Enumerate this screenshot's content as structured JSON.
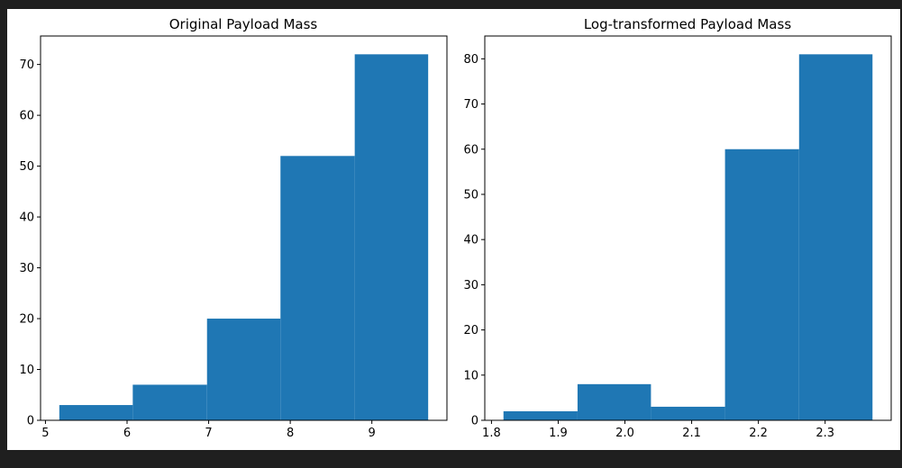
{
  "chart_data": [
    {
      "type": "bar",
      "title": "Original Payload Mass",
      "xlabel": "",
      "ylabel": "",
      "bins": [
        {
          "x0": 5.17,
          "x1": 6.07,
          "count": 3
        },
        {
          "x0": 6.07,
          "x1": 6.98,
          "count": 7
        },
        {
          "x0": 6.98,
          "x1": 7.88,
          "count": 20
        },
        {
          "x0": 7.88,
          "x1": 8.79,
          "count": 52
        },
        {
          "x0": 8.79,
          "x1": 9.69,
          "count": 72
        }
      ],
      "xlim": [
        4.94,
        9.92
      ],
      "ylim": [
        0,
        75.6
      ],
      "xticks": [
        5,
        6,
        7,
        8,
        9
      ],
      "yticks": [
        0,
        10,
        20,
        30,
        40,
        50,
        60,
        70
      ],
      "xtick_labels": [
        "5",
        "6",
        "7",
        "8",
        "9"
      ],
      "ytick_labels": [
        "0",
        "10",
        "20",
        "30",
        "40",
        "50",
        "60",
        "70"
      ],
      "color": "#1f77b4"
    },
    {
      "type": "bar",
      "title": "Log-transformed Payload Mass",
      "xlabel": "",
      "ylabel": "",
      "bins": [
        {
          "x0": 1.818,
          "x1": 1.929,
          "count": 2
        },
        {
          "x0": 1.929,
          "x1": 2.039,
          "count": 8
        },
        {
          "x0": 2.039,
          "x1": 2.15,
          "count": 3
        },
        {
          "x0": 2.15,
          "x1": 2.261,
          "count": 60
        },
        {
          "x0": 2.261,
          "x1": 2.371,
          "count": 81
        }
      ],
      "xlim": [
        1.79,
        2.399
      ],
      "ylim": [
        0,
        85.05
      ],
      "xticks": [
        1.8,
        1.9,
        2.0,
        2.1,
        2.2,
        2.3
      ],
      "yticks": [
        0,
        10,
        20,
        30,
        40,
        50,
        60,
        70,
        80
      ],
      "xtick_labels": [
        "1.8",
        "1.9",
        "2.0",
        "2.1",
        "2.2",
        "2.3"
      ],
      "ytick_labels": [
        "0",
        "10",
        "20",
        "30",
        "40",
        "50",
        "60",
        "70",
        "80"
      ],
      "color": "#1f77b4"
    }
  ]
}
